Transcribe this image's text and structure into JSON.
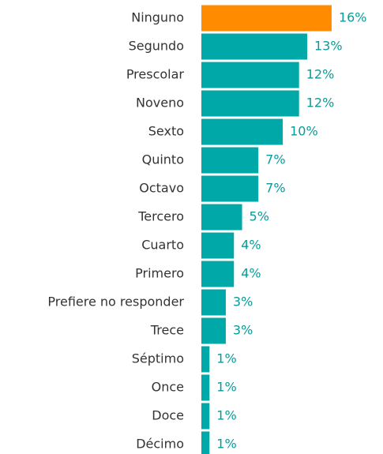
{
  "chart_data": {
    "type": "barh",
    "categories": [
      "Ninguno",
      "Segundo",
      "Prescolar",
      "Noveno",
      "Sexto",
      "Quinto",
      "Octavo",
      "Tercero",
      "Cuarto",
      "Primero",
      "Prefiere no responder",
      "Trece",
      "Séptimo",
      "Once",
      "Doce",
      "Décimo"
    ],
    "values": [
      16,
      13,
      12,
      12,
      10,
      7,
      7,
      5,
      4,
      4,
      3,
      3,
      1,
      1,
      1,
      1
    ],
    "value_labels": [
      "16%",
      "13%",
      "12%",
      "12%",
      "10%",
      "7%",
      "7%",
      "5%",
      "4%",
      "4%",
      "3%",
      "3%",
      "1%",
      "1%",
      "1%",
      "1%"
    ],
    "colors": [
      "#ff8c00",
      "#00a8a8",
      "#00a8a8",
      "#00a8a8",
      "#00a8a8",
      "#00a8a8",
      "#00a8a8",
      "#00a8a8",
      "#00a8a8",
      "#00a8a8",
      "#00a8a8",
      "#00a8a8",
      "#00a8a8",
      "#00a8a8",
      "#00a8a8",
      "#00a8a8"
    ],
    "xlim": [
      0,
      16.2
    ]
  }
}
